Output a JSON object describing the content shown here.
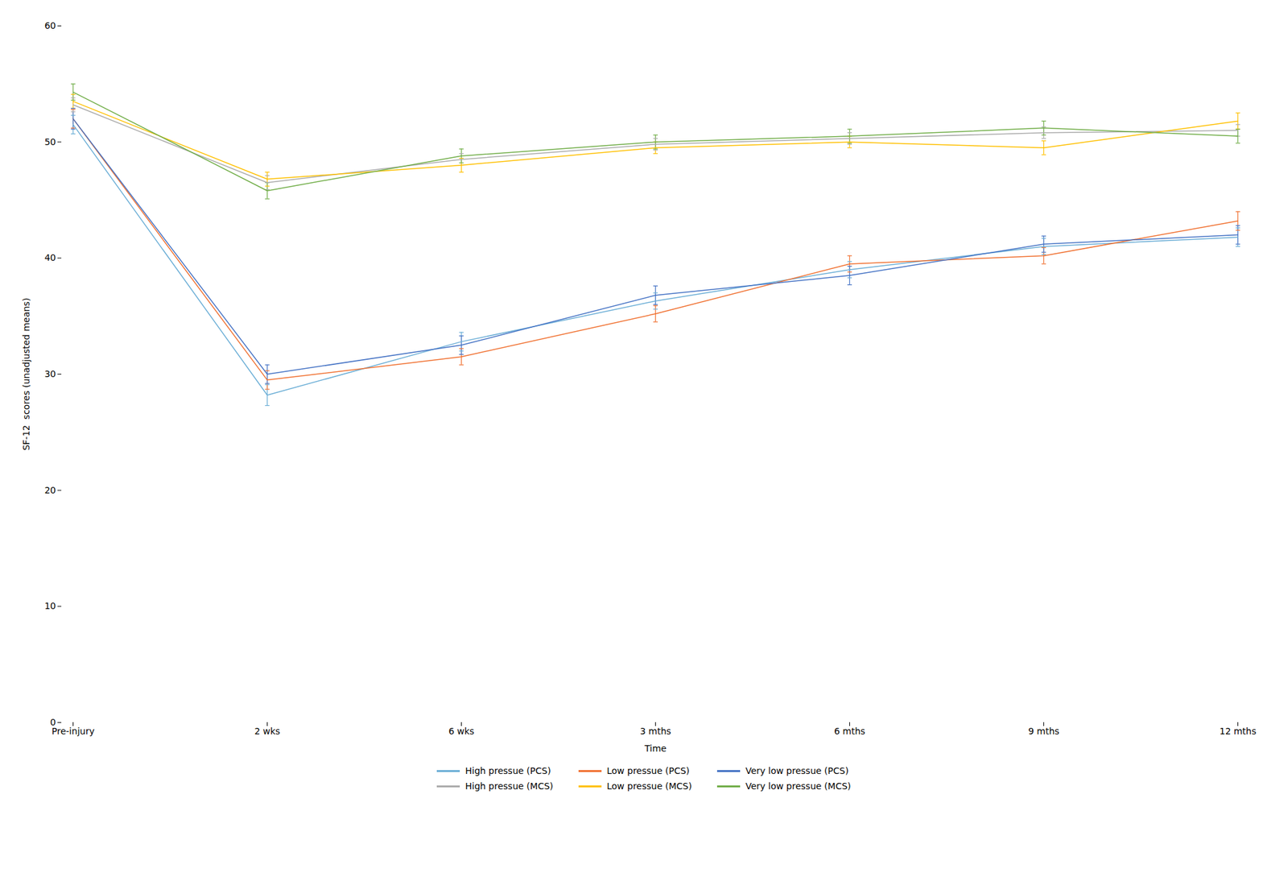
{
  "chart_data": {
    "type": "line",
    "categories": [
      "Pre-injury",
      "2 wks",
      "6 wks",
      "3 mths",
      "6 mths",
      "9 mths",
      "12 mths"
    ],
    "xlabel": "Time",
    "ylabel": "SF-12  scores (unadjusted means)",
    "ylim": [
      0,
      60
    ],
    "yticks": [
      0,
      10,
      20,
      30,
      40,
      50,
      60
    ],
    "grid": false,
    "legend": "bottom",
    "series": [
      {
        "name": "High pressue (PCS)",
        "color": "#6BAED6",
        "values": [
          51.5,
          28.2,
          32.8,
          36.3,
          39.0,
          41.0,
          41.8
        ],
        "errors": [
          0.8,
          0.9,
          0.8,
          0.7,
          0.7,
          0.7,
          0.8
        ]
      },
      {
        "name": "Low pressue (PCS)",
        "color": "#F07030",
        "values": [
          52.0,
          29.5,
          31.5,
          35.2,
          39.5,
          40.2,
          43.2
        ],
        "errors": [
          0.8,
          0.8,
          0.7,
          0.7,
          0.7,
          0.7,
          0.8
        ]
      },
      {
        "name": "Very low pressue (PCS)",
        "color": "#4472C4",
        "values": [
          52.0,
          30.0,
          32.5,
          36.8,
          38.5,
          41.2,
          42.0
        ],
        "errors": [
          0.9,
          0.8,
          0.8,
          0.8,
          0.8,
          0.7,
          0.8
        ]
      },
      {
        "name": "High pressue (MCS)",
        "color": "#ABABAB",
        "values": [
          53.2,
          46.5,
          48.5,
          49.8,
          50.3,
          50.8,
          51.0
        ],
        "errors": [
          0.6,
          0.6,
          0.5,
          0.5,
          0.5,
          0.5,
          0.5
        ]
      },
      {
        "name": "Low pressue (MCS)",
        "color": "#FFC000",
        "values": [
          53.5,
          46.8,
          48.0,
          49.5,
          50.0,
          49.5,
          51.8
        ],
        "errors": [
          0.6,
          0.6,
          0.6,
          0.5,
          0.5,
          0.6,
          0.7
        ]
      },
      {
        "name": "Very low pressue (MCS)",
        "color": "#70AD47",
        "values": [
          54.3,
          45.8,
          48.8,
          50.0,
          50.5,
          51.2,
          50.5
        ],
        "errors": [
          0.7,
          0.7,
          0.6,
          0.6,
          0.6,
          0.6,
          0.6
        ]
      }
    ]
  }
}
